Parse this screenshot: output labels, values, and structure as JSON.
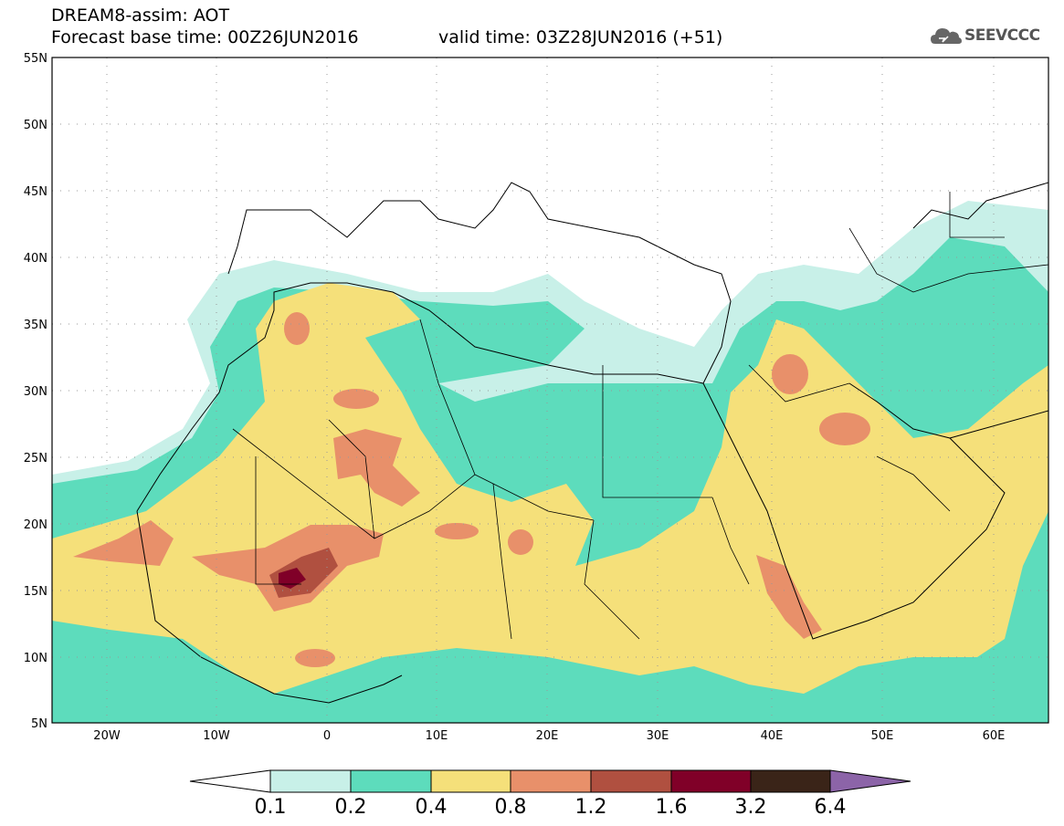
{
  "header": {
    "line1": "DREAM8-assim: AOT",
    "line2_left": "Forecast base time: 00Z26JUN2016",
    "line2_right": "valid time: 03Z28JUN2016 (+51)",
    "brand": "SEEVCCC"
  },
  "map": {
    "lat_labels": [
      "55N",
      "50N",
      "45N",
      "40N",
      "35N",
      "30N",
      "25N",
      "20N",
      "15N",
      "10N",
      "5N"
    ],
    "lon_labels": [
      "20W",
      "10W",
      "0",
      "10E",
      "20E",
      "30E",
      "40E",
      "50E",
      "60E"
    ]
  },
  "colorbar": {
    "colors": [
      "#c8f0e8",
      "#5ddcbc",
      "#f5e07a",
      "#e8906a",
      "#b05040",
      "#800028",
      "#3a2418",
      "#8c64a8"
    ],
    "labels": [
      "0.1",
      "0.2",
      "0.4",
      "0.8",
      "1.2",
      "1.6",
      "3.2",
      "6.4"
    ]
  }
}
